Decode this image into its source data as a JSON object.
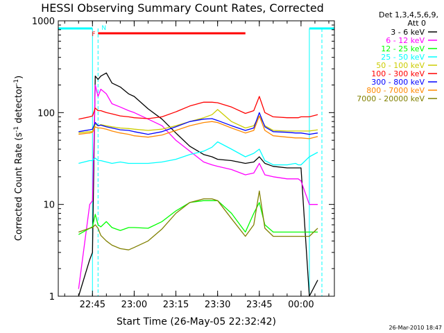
{
  "chart_data": {
    "type": "line",
    "title": "HESSI Observing Summary Count Rates, Corrected",
    "xlabel": "Start Time (26-May-05 22:32:42)",
    "ylabel": "Corrected Count Rate (s⁻¹ detector⁻¹)",
    "ylabel_text": "Corrected Count Rate (s",
    "ylabel_sup1": "-1",
    "ylabel_mid": " detector",
    "ylabel_sup2": "-1",
    "ylabel_end": ")",
    "xlim": [
      "22:32:42",
      "00:12:00"
    ],
    "ylim": [
      1,
      1000
    ],
    "yscale": "log",
    "x_ticks": [
      "22:45",
      "23:00",
      "23:15",
      "23:30",
      "23:45",
      "00:00"
    ],
    "y_ticks": [
      "1",
      "10",
      "100",
      "1000"
    ],
    "legend_header": [
      "Det 1,3,4,5,6,9,",
      "Att 0"
    ],
    "footer": "26-Mar-2010 18:47",
    "markers": [
      {
        "label": "N",
        "color": "#00ffff",
        "time": "22:47"
      },
      {
        "label": "F",
        "color": "#ff0000",
        "time": "22:47"
      }
    ],
    "flag_bars": [
      {
        "name": "night",
        "color": "#00ffff",
        "intervals": [
          [
            "22:32:42",
            "22:45"
          ],
          [
            "00:03",
            "00:12:00"
          ]
        ]
      },
      {
        "name": "flare",
        "color": "#ff0000",
        "intervals": [
          [
            "22:47",
            "23:40"
          ]
        ]
      }
    ],
    "x": [
      "22:40",
      "22:44",
      "22:45",
      "22:46",
      "22:47",
      "22:48",
      "22:50",
      "22:52",
      "22:55",
      "22:58",
      "23:00",
      "23:05",
      "23:10",
      "23:15",
      "23:20",
      "23:25",
      "23:28",
      "23:30",
      "23:35",
      "23:40",
      "23:43",
      "23:45",
      "23:47",
      "23:50",
      "23:55",
      "23:58",
      "23:59",
      "00:00",
      "00:03",
      "00:06"
    ],
    "series": [
      {
        "name": "3 - 6 keV",
        "color": "#000000",
        "values": [
          1.0,
          2.5,
          3.0,
          250,
          230,
          250,
          270,
          210,
          190,
          160,
          150,
          110,
          85,
          60,
          43,
          35,
          33,
          31,
          30,
          28,
          29,
          33,
          28,
          26,
          25,
          25,
          25,
          25,
          1.0,
          1.5
        ]
      },
      {
        "name": "6 - 12 keV",
        "color": "#ff00ff",
        "values": [
          1.2,
          10,
          11,
          200,
          150,
          180,
          160,
          125,
          115,
          105,
          100,
          85,
          72,
          50,
          38,
          29,
          27,
          26,
          24,
          21,
          22,
          28,
          21,
          20,
          19,
          19,
          19,
          18,
          10,
          10
        ]
      },
      {
        "name": "12 - 25 keV",
        "color": "#00ff00",
        "values": [
          4.7,
          5.5,
          5.7,
          7.8,
          6.0,
          5.7,
          6.5,
          5.6,
          5.2,
          5.6,
          5.6,
          5.5,
          6.5,
          8.5,
          10.5,
          11,
          11,
          11,
          8,
          5,
          8,
          10.5,
          6,
          5,
          5,
          5,
          5,
          5,
          5,
          5
        ]
      },
      {
        "name": "25 - 50 keV",
        "color": "#00ffff",
        "values": [
          28,
          30,
          30,
          32,
          30,
          30,
          29,
          28,
          29,
          28,
          28,
          28,
          29,
          31,
          35,
          38,
          42,
          48,
          40,
          33,
          36,
          40,
          30,
          27,
          27,
          28,
          27,
          27,
          33,
          37
        ]
      },
      {
        "name": "50 - 100 keV",
        "color": "#cccc00",
        "values": [
          60,
          62,
          62,
          75,
          72,
          74,
          72,
          70,
          68,
          67,
          66,
          64,
          66,
          72,
          80,
          88,
          95,
          108,
          80,
          68,
          72,
          92,
          72,
          64,
          63,
          63,
          63,
          63,
          63,
          65
        ]
      },
      {
        "name": "100 - 300 keV",
        "color": "#ff0000",
        "values": [
          85,
          90,
          92,
          112,
          105,
          105,
          100,
          97,
          92,
          90,
          88,
          86,
          90,
          102,
          118,
          130,
          130,
          128,
          115,
          98,
          105,
          150,
          100,
          90,
          88,
          88,
          88,
          90,
          90,
          95
        ]
      },
      {
        "name": "300 - 800 keV",
        "color": "#0000ff",
        "values": [
          62,
          65,
          66,
          78,
          72,
          73,
          70,
          68,
          65,
          64,
          62,
          58,
          62,
          70,
          80,
          85,
          86,
          82,
          72,
          64,
          68,
          100,
          70,
          62,
          61,
          60,
          60,
          60,
          58,
          60
        ]
      },
      {
        "name": "800 - 7000 keV",
        "color": "#ff8800",
        "values": [
          58,
          60,
          61,
          70,
          68,
          68,
          66,
          63,
          60,
          58,
          56,
          54,
          57,
          64,
          72,
          78,
          80,
          78,
          68,
          60,
          64,
          92,
          64,
          56,
          54,
          53,
          53,
          53,
          52,
          55
        ]
      },
      {
        "name": "7000 - 20000 keV",
        "color": "#808000",
        "values": [
          5.0,
          5.5,
          5.6,
          6.0,
          5.5,
          4.6,
          4.0,
          3.6,
          3.3,
          3.2,
          3.4,
          4.0,
          5.4,
          8.0,
          10.5,
          11.5,
          11.5,
          11,
          7,
          4.5,
          6,
          14,
          5.5,
          4.5,
          4.5,
          4.5,
          4.5,
          4.5,
          4.5,
          5.5
        ]
      }
    ]
  }
}
